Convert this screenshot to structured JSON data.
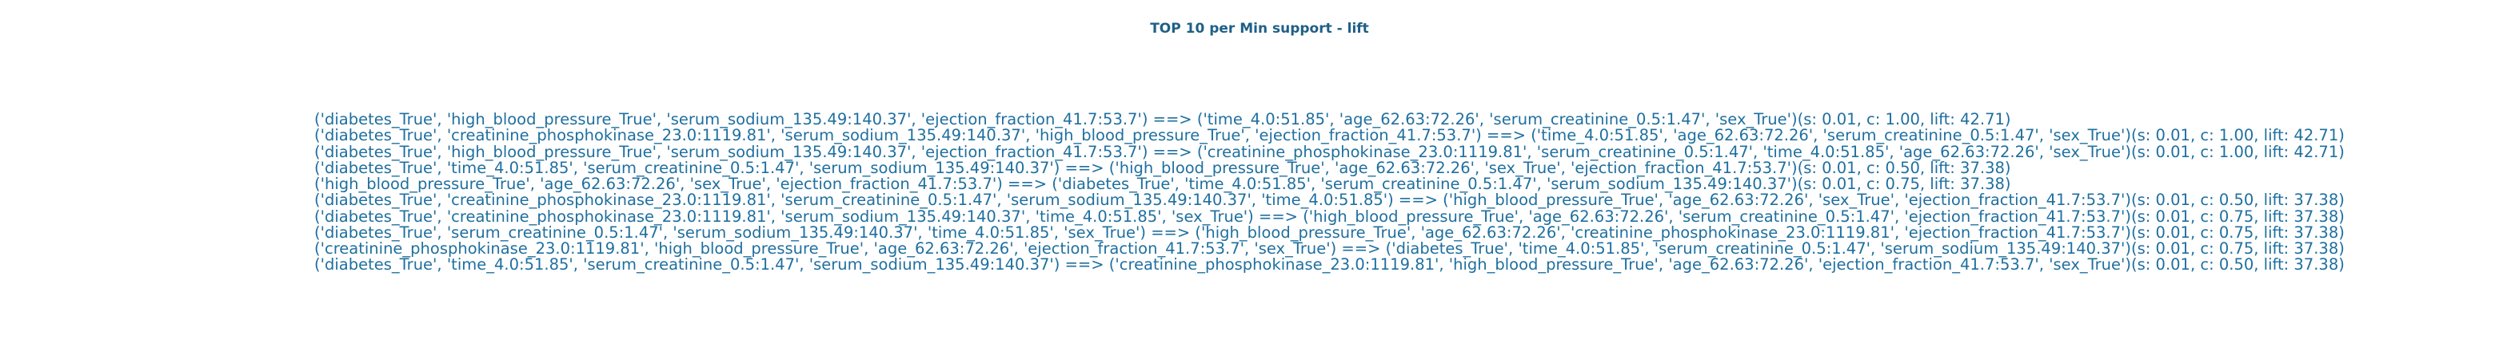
{
  "chart_data": {
    "type": "table",
    "title": "TOP 10 per Min support - lift",
    "rules": [
      "('diabetes_True', 'high_blood_pressure_True', 'serum_sodium_135.49:140.37', 'ejection_fraction_41.7:53.7') ==> ('time_4.0:51.85', 'age_62.63:72.26', 'serum_creatinine_0.5:1.47', 'sex_True')(s: 0.01, c: 1.00, lift: 42.71)",
      "('diabetes_True', 'creatinine_phosphokinase_23.0:1119.81', 'serum_sodium_135.49:140.37', 'high_blood_pressure_True', 'ejection_fraction_41.7:53.7') ==> ('time_4.0:51.85', 'age_62.63:72.26', 'serum_creatinine_0.5:1.47', 'sex_True')(s: 0.01, c: 1.00, lift: 42.71)",
      "('diabetes_True', 'high_blood_pressure_True', 'serum_sodium_135.49:140.37', 'ejection_fraction_41.7:53.7') ==> ('creatinine_phosphokinase_23.0:1119.81', 'serum_creatinine_0.5:1.47', 'time_4.0:51.85', 'age_62.63:72.26', 'sex_True')(s: 0.01, c: 1.00, lift: 42.71)",
      "('diabetes_True', 'time_4.0:51.85', 'serum_creatinine_0.5:1.47', 'serum_sodium_135.49:140.37') ==> ('high_blood_pressure_True', 'age_62.63:72.26', 'sex_True', 'ejection_fraction_41.7:53.7')(s: 0.01, c: 0.50, lift: 37.38)",
      "('high_blood_pressure_True', 'age_62.63:72.26', 'sex_True', 'ejection_fraction_41.7:53.7') ==> ('diabetes_True', 'time_4.0:51.85', 'serum_creatinine_0.5:1.47', 'serum_sodium_135.49:140.37')(s: 0.01, c: 0.75, lift: 37.38)",
      "('diabetes_True', 'creatinine_phosphokinase_23.0:1119.81', 'serum_creatinine_0.5:1.47', 'serum_sodium_135.49:140.37', 'time_4.0:51.85') ==> ('high_blood_pressure_True', 'age_62.63:72.26', 'sex_True', 'ejection_fraction_41.7:53.7')(s: 0.01, c: 0.50, lift: 37.38)",
      "('diabetes_True', 'creatinine_phosphokinase_23.0:1119.81', 'serum_sodium_135.49:140.37', 'time_4.0:51.85', 'sex_True') ==> ('high_blood_pressure_True', 'age_62.63:72.26', 'serum_creatinine_0.5:1.47', 'ejection_fraction_41.7:53.7')(s: 0.01, c: 0.75, lift: 37.38)",
      "('diabetes_True', 'serum_creatinine_0.5:1.47', 'serum_sodium_135.49:140.37', 'time_4.0:51.85', 'sex_True') ==> ('high_blood_pressure_True', 'age_62.63:72.26', 'creatinine_phosphokinase_23.0:1119.81', 'ejection_fraction_41.7:53.7')(s: 0.01, c: 0.75, lift: 37.38)",
      "('creatinine_phosphokinase_23.0:1119.81', 'high_blood_pressure_True', 'age_62.63:72.26', 'ejection_fraction_41.7:53.7', 'sex_True') ==> ('diabetes_True', 'time_4.0:51.85', 'serum_creatinine_0.5:1.47', 'serum_sodium_135.49:140.37')(s: 0.01, c: 0.75, lift: 37.38)",
      "('diabetes_True', 'time_4.0:51.85', 'serum_creatinine_0.5:1.47', 'serum_sodium_135.49:140.37') ==> ('creatinine_phosphokinase_23.0:1119.81', 'high_blood_pressure_True', 'age_62.63:72.26', 'ejection_fraction_41.7:53.7', 'sex_True')(s: 0.01, c: 0.50, lift: 37.38)"
    ],
    "colors": {
      "title": "#1f5f86",
      "text": "#1f6f9f"
    }
  }
}
